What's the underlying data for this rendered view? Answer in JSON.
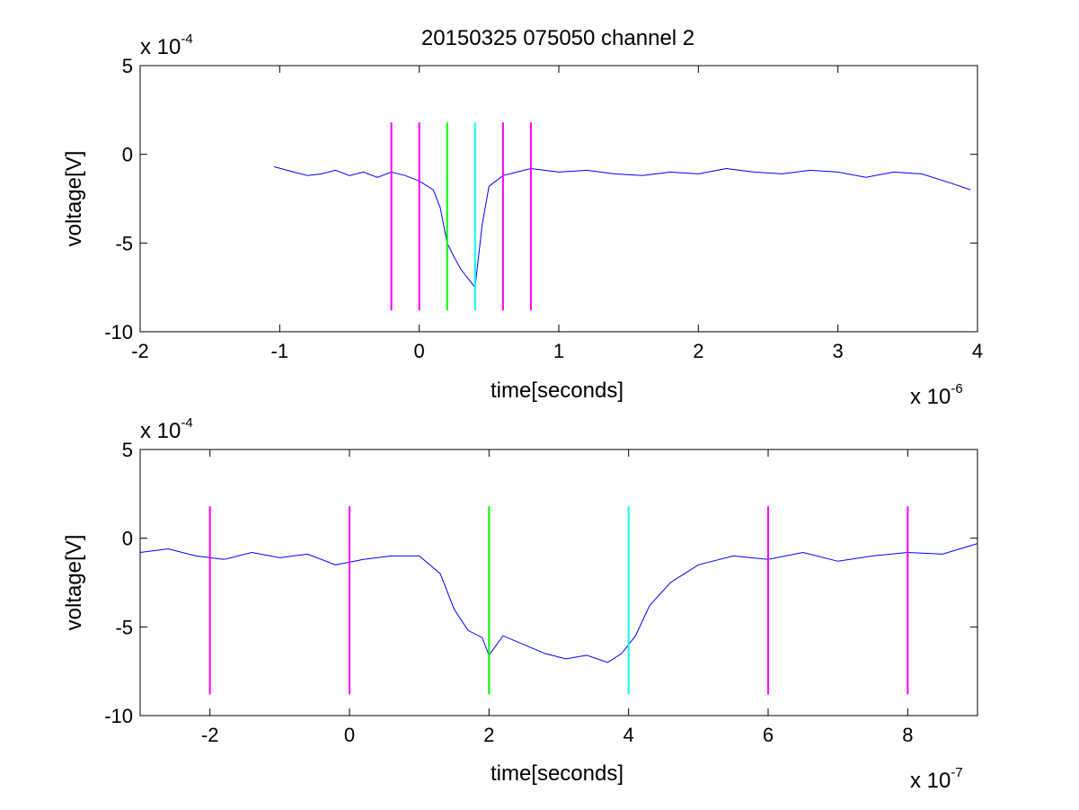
{
  "figure": {
    "title": "20150325 075050 channel 2"
  },
  "chart_data": [
    {
      "type": "line",
      "name": "top",
      "title": "20150325 075050 channel 2",
      "xlabel": "time[seconds]",
      "ylabel": "voltage[V]",
      "x_multiplier": "x 10",
      "x_multiplier_exp": "-6",
      "y_multiplier": "x 10",
      "y_multiplier_exp": "-4",
      "xlim": [
        -2,
        4
      ],
      "ylim": [
        -10,
        5
      ],
      "xticks": [
        "-2",
        "-1",
        "0",
        "1",
        "2",
        "3",
        "4"
      ],
      "yticks": [
        "5",
        "0",
        "-5",
        "-10"
      ],
      "grid": false,
      "series_color": "#0000ff",
      "series": [
        {
          "x": [
            -1.04,
            -0.9,
            -0.8,
            -0.7,
            -0.6,
            -0.5,
            -0.4,
            -0.3,
            -0.2,
            -0.1,
            0.0,
            0.1,
            0.15,
            0.2,
            0.25,
            0.3,
            0.35,
            0.4,
            0.45,
            0.5,
            0.6,
            0.7,
            0.8,
            1.0,
            1.2,
            1.4,
            1.6,
            1.8,
            2.0,
            2.2,
            2.4,
            2.6,
            2.8,
            3.0,
            3.2,
            3.4,
            3.6,
            3.8,
            3.95
          ],
          "y": [
            -0.7,
            -1.0,
            -1.2,
            -1.1,
            -0.9,
            -1.2,
            -1.0,
            -1.3,
            -1.0,
            -1.2,
            -1.5,
            -2.0,
            -3.0,
            -5.0,
            -5.8,
            -6.5,
            -7.0,
            -7.5,
            -4.0,
            -1.8,
            -1.2,
            -1.0,
            -0.8,
            -1.0,
            -0.9,
            -1.1,
            -1.2,
            -1.0,
            -1.1,
            -0.8,
            -1.0,
            -1.1,
            -0.9,
            -1.0,
            -1.3,
            -1.0,
            -1.1,
            -1.6,
            -2.0
          ]
        }
      ],
      "markers": [
        {
          "x": -0.2,
          "color": "#ff00ff"
        },
        {
          "x": 0.0,
          "color": "#ff00ff"
        },
        {
          "x": 0.2,
          "color": "#00ff00"
        },
        {
          "x": 0.4,
          "color": "#00ffff"
        },
        {
          "x": 0.6,
          "color": "#ff00ff"
        },
        {
          "x": 0.8,
          "color": "#ff00ff"
        }
      ],
      "marker_range": [
        -8.8,
        1.8
      ]
    },
    {
      "type": "line",
      "name": "bottom",
      "title": "",
      "xlabel": "time[seconds]",
      "ylabel": "voltage[V]",
      "x_multiplier": "x 10",
      "x_multiplier_exp": "-7",
      "y_multiplier": "x 10",
      "y_multiplier_exp": "-4",
      "xlim": [
        -3,
        9
      ],
      "ylim": [
        -10,
        5
      ],
      "xticks": [
        "-2",
        "0",
        "2",
        "4",
        "6",
        "8"
      ],
      "xtick_values": [
        -2,
        0,
        2,
        4,
        6,
        8
      ],
      "yticks": [
        "5",
        "0",
        "-5",
        "-10"
      ],
      "grid": false,
      "series_color": "#0000ff",
      "series": [
        {
          "x": [
            -3.0,
            -2.6,
            -2.2,
            -1.8,
            -1.4,
            -1.0,
            -0.6,
            -0.2,
            0.2,
            0.6,
            1.0,
            1.3,
            1.5,
            1.7,
            1.9,
            2.0,
            2.2,
            2.5,
            2.8,
            3.1,
            3.4,
            3.7,
            3.9,
            4.1,
            4.3,
            4.6,
            5.0,
            5.5,
            6.0,
            6.5,
            7.0,
            7.5,
            8.0,
            8.5,
            9.0
          ],
          "y": [
            -0.8,
            -0.6,
            -1.0,
            -1.2,
            -0.8,
            -1.1,
            -0.9,
            -1.5,
            -1.2,
            -1.0,
            -1.0,
            -2.0,
            -4.0,
            -5.2,
            -5.6,
            -6.6,
            -5.5,
            -6.0,
            -6.5,
            -6.8,
            -6.6,
            -7.0,
            -6.5,
            -5.5,
            -3.8,
            -2.5,
            -1.5,
            -1.0,
            -1.2,
            -0.8,
            -1.3,
            -1.0,
            -0.8,
            -0.9,
            -0.3
          ]
        }
      ],
      "markers": [
        {
          "x": -2,
          "color": "#ff00ff"
        },
        {
          "x": 0,
          "color": "#ff00ff"
        },
        {
          "x": 2,
          "color": "#00ff00"
        },
        {
          "x": 4,
          "color": "#00ffff"
        },
        {
          "x": 6,
          "color": "#ff00ff"
        },
        {
          "x": 8,
          "color": "#ff00ff"
        }
      ],
      "marker_range": [
        -8.8,
        1.8
      ]
    }
  ]
}
